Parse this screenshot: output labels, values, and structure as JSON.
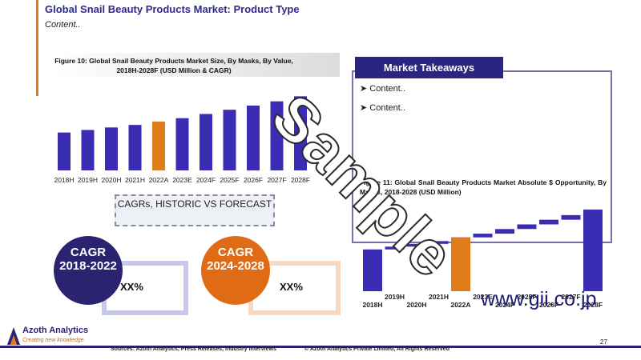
{
  "header": {
    "title": "Global Snail Beauty Products Market: Product Type",
    "subtitle": "Content.."
  },
  "chart_data": [
    {
      "type": "bar",
      "title": "Figure 10: Global Snail Beauty Products Market Size, By Masks, By Value, 2018H-2028F (USD Million & CAGR)",
      "categories": [
        "2018H",
        "2019H",
        "2020H",
        "2021H",
        "2022A",
        "2023E",
        "2024F",
        "2025F",
        "2026F",
        "2027F",
        "2028F"
      ],
      "values": [
        45,
        48,
        51,
        54,
        58,
        62,
        67,
        72,
        77,
        82,
        88
      ],
      "highlight": "2022A",
      "ylim": [
        0,
        95
      ],
      "grid": false,
      "colors": {
        "historic": "#3a2db3",
        "base": "#e07b1a"
      }
    },
    {
      "type": "waterfall",
      "title": "Figure 11: Global Snail Beauty Products Market Absolute $ Opportunity, By Masks, 2018-2028 (USD Million)",
      "categories": [
        "2018H",
        "2019H",
        "2020H",
        "2021H",
        "2022A",
        "2023E",
        "2024F",
        "2025F",
        "2026F",
        "2027F",
        "2028F"
      ],
      "values": [
        45,
        3,
        3,
        3,
        4,
        4,
        5,
        5,
        5,
        5,
        88
      ],
      "highlight": "2022A",
      "ylim": [
        0,
        100
      ],
      "colors": {
        "bars": "#3a2db3",
        "base": "#e07b1a"
      }
    }
  ],
  "cagr": {
    "box_label": "CAGRs, HISTORIC VS FORECAST",
    "historic": {
      "label": "CAGR",
      "period": "2018-2022",
      "value": "XX%"
    },
    "forecast": {
      "label": "CAGR",
      "period": "2024-2028",
      "value": "XX%"
    }
  },
  "takeaways": {
    "title": "Market Takeaways",
    "items": [
      "Content..",
      "Content.."
    ]
  },
  "footer": {
    "logo_name": "Azoth Analytics",
    "logo_tagline": "Creating new knowledge",
    "sources": "Sources: Azoth Analytics, Press Releases, Industry Interviews",
    "copyright": "© Azoth Analytics Private Limited, All Rights Reserved",
    "page": "27"
  },
  "watermark": {
    "text": "Sample",
    "url": "www.gii.co.jp"
  }
}
